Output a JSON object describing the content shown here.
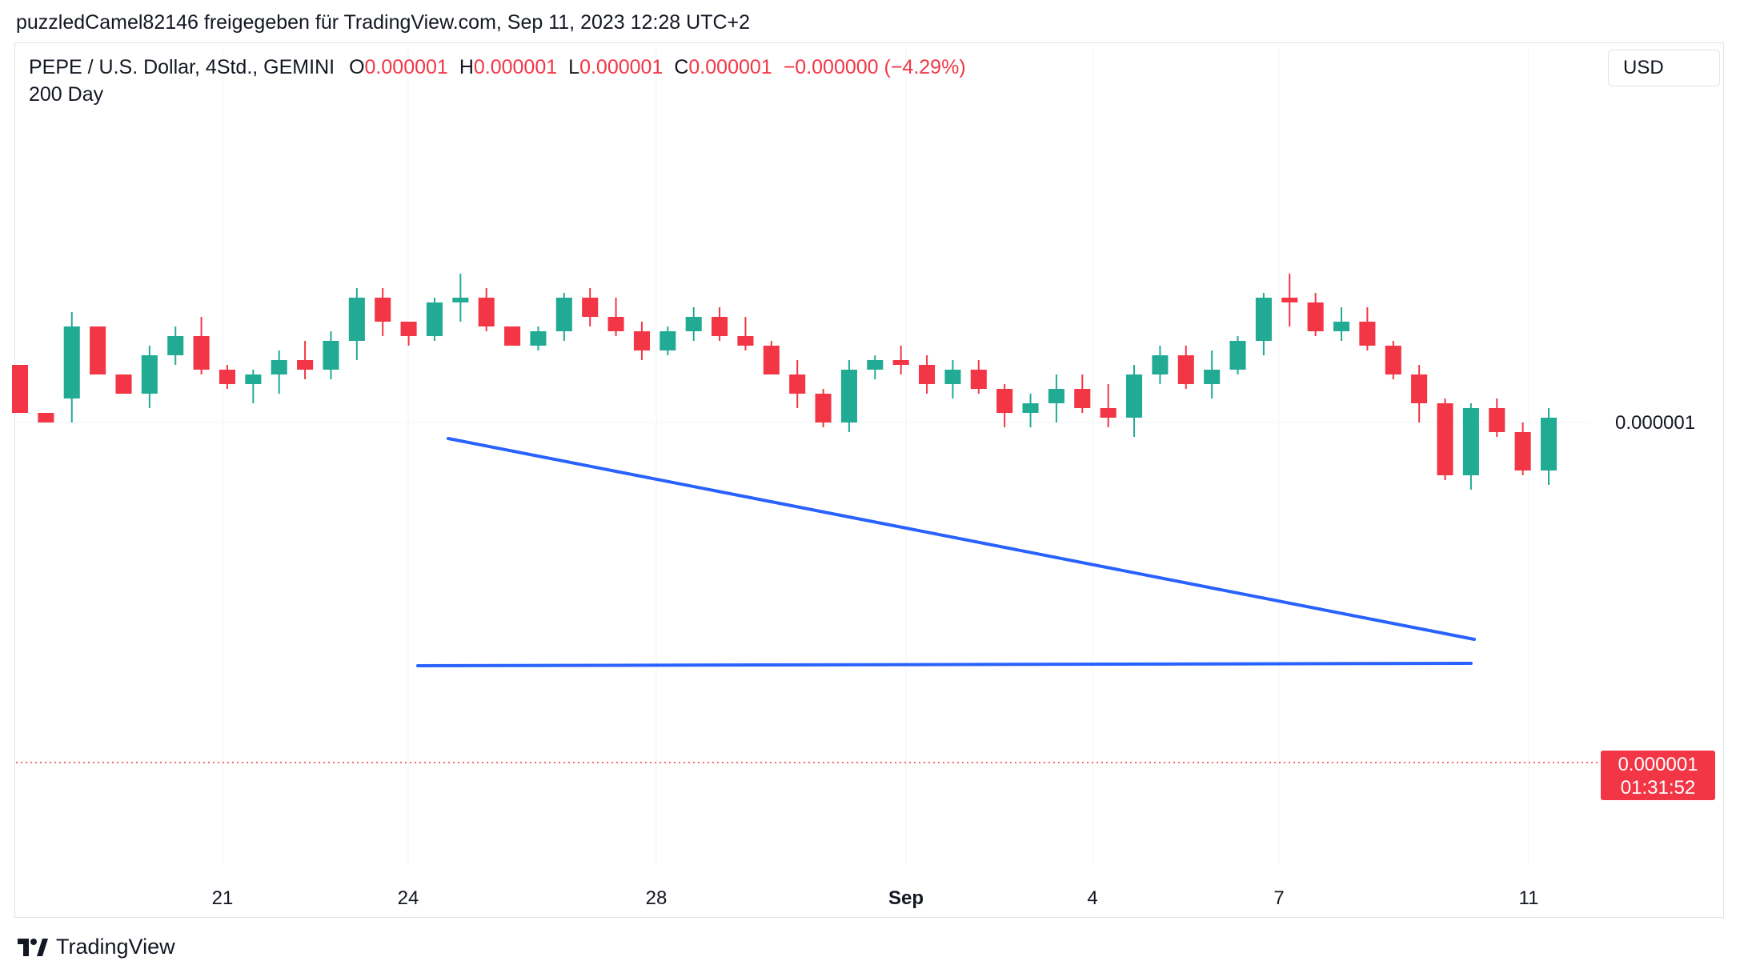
{
  "header": {
    "byline": "puzzledCamel82146 freigegeben für TradingView.com, Sep 11, 2023 12:28 UTC+2"
  },
  "legend": {
    "symbol": "PEPE / U.S. Dollar, 4Std., GEMINI",
    "o_label": "O",
    "o_value": "0.000001",
    "h_label": "H",
    "h_value": "0.000001",
    "l_label": "L",
    "l_value": "0.000001",
    "c_label": "C",
    "c_value": "0.000001",
    "change": "−0.000000 (−4.29%)",
    "indicator": "200 Day"
  },
  "currency_button": "USD",
  "price_axis": {
    "label": "0.000001"
  },
  "last_price": {
    "value": "0.000001",
    "countdown": "01:31:52"
  },
  "branding": {
    "name": "TradingView"
  },
  "colors": {
    "up": "#22ab94",
    "down": "#f23645",
    "trendline": "#2962ff",
    "grid": "#f0f3fa"
  },
  "chart_data": {
    "type": "candlestick",
    "x_ticks": [
      "21",
      "24",
      "28",
      "Sep",
      "4",
      "7",
      "11"
    ],
    "y_ticks": [
      "0.000001"
    ],
    "grid": true,
    "candles_note_units": "relative price index (100 = price-axis label level)",
    "ohlc": [
      [
        112,
        112,
        102,
        102
      ],
      [
        102,
        102,
        100,
        100
      ],
      [
        105,
        123,
        100,
        120
      ],
      [
        120,
        120,
        110,
        110
      ],
      [
        110,
        110,
        106,
        106
      ],
      [
        106,
        116,
        103,
        114
      ],
      [
        114,
        120,
        112,
        118
      ],
      [
        118,
        122,
        110,
        111
      ],
      [
        111,
        112,
        107,
        108
      ],
      [
        108,
        111,
        104,
        110
      ],
      [
        110,
        115,
        106,
        113
      ],
      [
        113,
        117,
        109,
        111
      ],
      [
        111,
        119,
        109,
        117
      ],
      [
        117,
        128,
        113,
        126
      ],
      [
        126,
        128,
        118,
        121
      ],
      [
        121,
        121,
        116,
        118
      ],
      [
        118,
        126,
        117,
        125
      ],
      [
        125,
        131,
        121,
        126
      ],
      [
        126,
        128,
        119,
        120
      ],
      [
        120,
        120,
        116,
        116
      ],
      [
        116,
        120,
        115,
        119
      ],
      [
        119,
        127,
        117,
        126
      ],
      [
        126,
        128,
        120,
        122
      ],
      [
        122,
        126,
        118,
        119
      ],
      [
        119,
        121,
        113,
        115
      ],
      [
        115,
        120,
        114,
        119
      ],
      [
        119,
        124,
        117,
        122
      ],
      [
        122,
        124,
        117,
        118
      ],
      [
        118,
        122,
        115,
        116
      ],
      [
        116,
        117,
        110,
        110
      ],
      [
        110,
        113,
        103,
        106
      ],
      [
        106,
        107,
        99,
        100
      ],
      [
        100,
        113,
        98,
        111
      ],
      [
        111,
        114,
        109,
        113
      ],
      [
        113,
        116,
        110,
        112
      ],
      [
        112,
        114,
        106,
        108
      ],
      [
        108,
        113,
        105,
        111
      ],
      [
        111,
        113,
        106,
        107
      ],
      [
        107,
        108,
        99,
        102
      ],
      [
        102,
        106,
        99,
        104
      ],
      [
        104,
        110,
        100,
        107
      ],
      [
        107,
        110,
        102,
        103
      ],
      [
        103,
        108,
        99,
        101
      ],
      [
        101,
        112,
        97,
        110
      ],
      [
        110,
        116,
        108,
        114
      ],
      [
        114,
        116,
        107,
        108
      ],
      [
        108,
        115,
        105,
        111
      ],
      [
        111,
        118,
        110,
        117
      ],
      [
        117,
        127,
        114,
        126
      ],
      [
        126,
        131,
        120,
        125
      ],
      [
        125,
        127,
        118,
        119
      ],
      [
        119,
        124,
        117,
        121
      ],
      [
        121,
        124,
        115,
        116
      ],
      [
        116,
        117,
        109,
        110
      ],
      [
        110,
        112,
        100,
        104
      ],
      [
        104,
        105,
        88,
        89
      ],
      [
        89,
        104,
        86,
        103
      ],
      [
        103,
        105,
        97,
        98
      ],
      [
        98,
        100,
        89,
        90
      ],
      [
        90,
        103,
        87,
        101
      ]
    ]
  }
}
